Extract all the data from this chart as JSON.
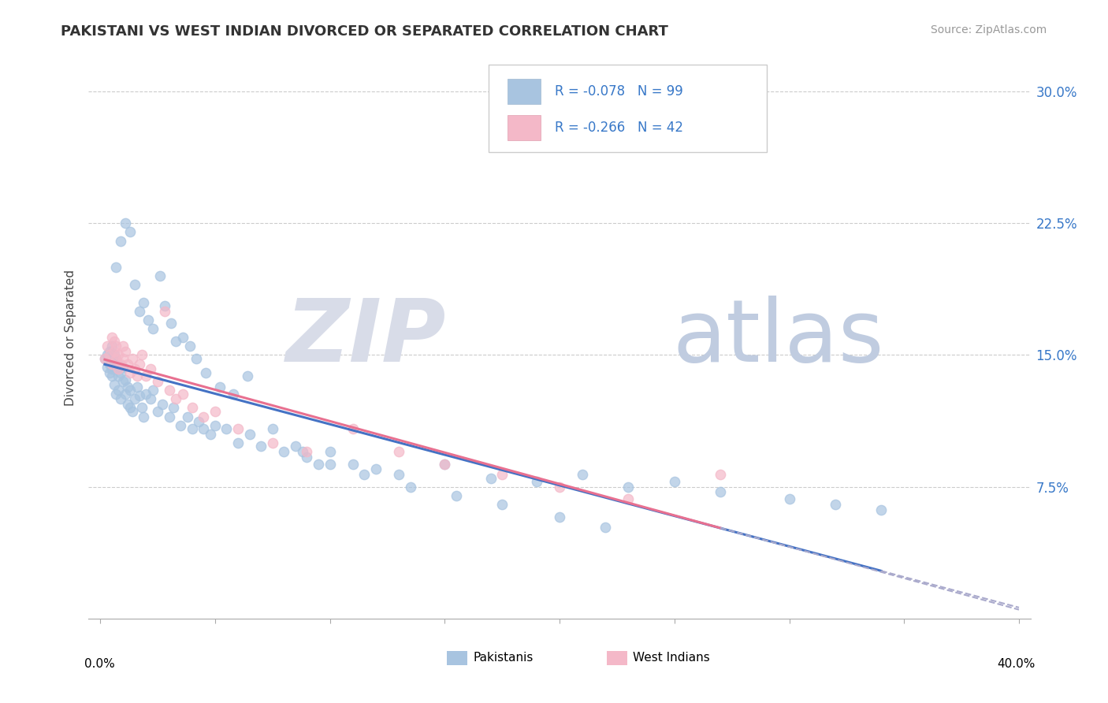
{
  "title": "PAKISTANI VS WEST INDIAN DIVORCED OR SEPARATED CORRELATION CHART",
  "source": "Source: ZipAtlas.com",
  "ylabel": "Divorced or Separated",
  "ytick_values": [
    0.075,
    0.15,
    0.225,
    0.3
  ],
  "xlim": [
    0.0,
    0.4
  ],
  "ylim": [
    0.0,
    0.32
  ],
  "series1_color": "#a8c4e0",
  "series2_color": "#f4b8c8",
  "trendline1_color": "#4472c4",
  "trendline2_color": "#e87090",
  "trendline_dash_color": "#aaaacc",
  "watermark_zip_color": "#d8dce8",
  "watermark_atlas_color": "#c0cce0",
  "pak_x": [
    0.002,
    0.003,
    0.003,
    0.004,
    0.004,
    0.004,
    0.005,
    0.005,
    0.005,
    0.005,
    0.006,
    0.006,
    0.006,
    0.007,
    0.007,
    0.007,
    0.008,
    0.008,
    0.008,
    0.009,
    0.009,
    0.01,
    0.01,
    0.011,
    0.011,
    0.012,
    0.012,
    0.013,
    0.013,
    0.014,
    0.015,
    0.016,
    0.017,
    0.018,
    0.019,
    0.02,
    0.022,
    0.023,
    0.025,
    0.027,
    0.03,
    0.032,
    0.035,
    0.038,
    0.04,
    0.043,
    0.045,
    0.048,
    0.05,
    0.055,
    0.06,
    0.065,
    0.07,
    0.08,
    0.085,
    0.09,
    0.095,
    0.1,
    0.11,
    0.12,
    0.13,
    0.15,
    0.17,
    0.19,
    0.21,
    0.23,
    0.25,
    0.27,
    0.3,
    0.32,
    0.34,
    0.007,
    0.009,
    0.011,
    0.013,
    0.015,
    0.017,
    0.019,
    0.021,
    0.023,
    0.026,
    0.028,
    0.031,
    0.033,
    0.036,
    0.039,
    0.042,
    0.046,
    0.052,
    0.058,
    0.064,
    0.075,
    0.088,
    0.1,
    0.115,
    0.135,
    0.155,
    0.175,
    0.2,
    0.22
  ],
  "pak_y": [
    0.148,
    0.143,
    0.15,
    0.14,
    0.152,
    0.145,
    0.138,
    0.142,
    0.147,
    0.155,
    0.133,
    0.145,
    0.15,
    0.128,
    0.142,
    0.148,
    0.13,
    0.138,
    0.145,
    0.125,
    0.14,
    0.135,
    0.143,
    0.128,
    0.136,
    0.122,
    0.132,
    0.12,
    0.13,
    0.118,
    0.125,
    0.132,
    0.127,
    0.12,
    0.115,
    0.128,
    0.125,
    0.13,
    0.118,
    0.122,
    0.115,
    0.12,
    0.11,
    0.115,
    0.108,
    0.112,
    0.108,
    0.105,
    0.11,
    0.108,
    0.1,
    0.105,
    0.098,
    0.095,
    0.098,
    0.092,
    0.088,
    0.095,
    0.088,
    0.085,
    0.082,
    0.088,
    0.08,
    0.078,
    0.082,
    0.075,
    0.078,
    0.072,
    0.068,
    0.065,
    0.062,
    0.2,
    0.215,
    0.225,
    0.22,
    0.19,
    0.175,
    0.18,
    0.17,
    0.165,
    0.195,
    0.178,
    0.168,
    0.158,
    0.16,
    0.155,
    0.148,
    0.14,
    0.132,
    0.128,
    0.138,
    0.108,
    0.095,
    0.088,
    0.082,
    0.075,
    0.07,
    0.065,
    0.058,
    0.052
  ],
  "wi_x": [
    0.002,
    0.003,
    0.004,
    0.005,
    0.005,
    0.006,
    0.006,
    0.007,
    0.007,
    0.008,
    0.008,
    0.009,
    0.01,
    0.01,
    0.011,
    0.012,
    0.013,
    0.014,
    0.015,
    0.016,
    0.017,
    0.018,
    0.02,
    0.022,
    0.025,
    0.028,
    0.03,
    0.033,
    0.036,
    0.04,
    0.045,
    0.05,
    0.06,
    0.075,
    0.09,
    0.11,
    0.13,
    0.15,
    0.175,
    0.2,
    0.23,
    0.27
  ],
  "wi_y": [
    0.148,
    0.155,
    0.15,
    0.16,
    0.145,
    0.152,
    0.158,
    0.148,
    0.155,
    0.142,
    0.15,
    0.145,
    0.155,
    0.148,
    0.152,
    0.145,
    0.14,
    0.148,
    0.142,
    0.138,
    0.145,
    0.15,
    0.138,
    0.142,
    0.135,
    0.175,
    0.13,
    0.125,
    0.128,
    0.12,
    0.115,
    0.118,
    0.108,
    0.1,
    0.095,
    0.108,
    0.095,
    0.088,
    0.082,
    0.075,
    0.068,
    0.082
  ]
}
